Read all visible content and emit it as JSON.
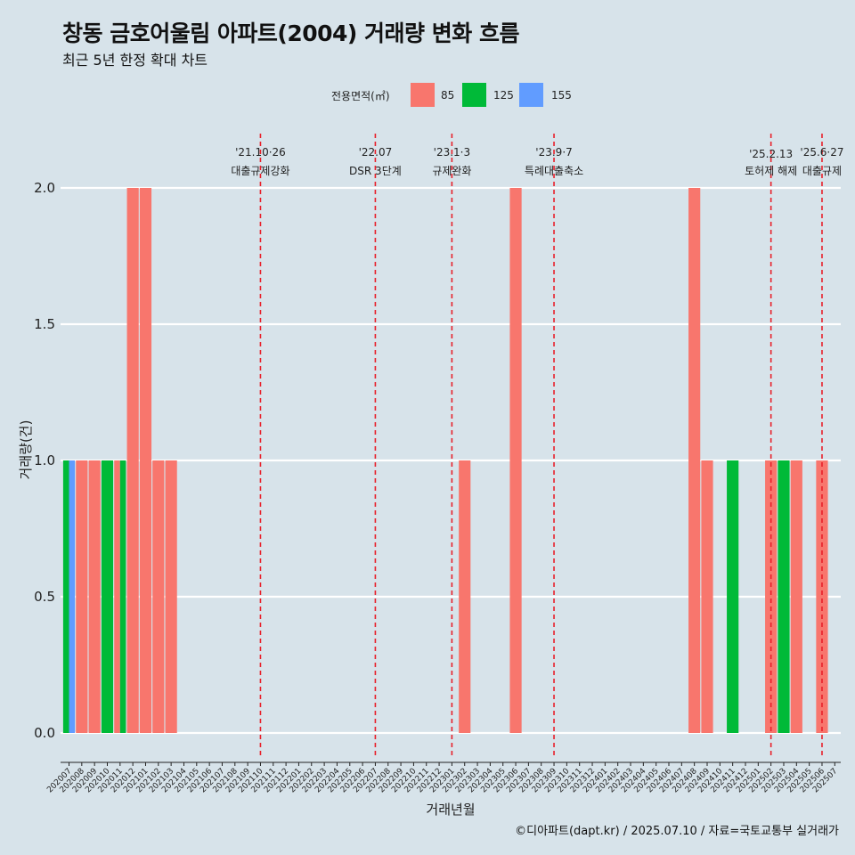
{
  "header": {
    "title": "창동 금호어울림 아파트(2004) 거래량 변화 흐름",
    "subtitle": "최근 5년 한정 확대 차트"
  },
  "caption": "©디아파트(dapt.kr) / 2025.07.10 / 자료=국토교통부 실거래가",
  "legend": {
    "title": "전용면적(㎡)",
    "items": [
      {
        "label": "85",
        "color": "#f8766d"
      },
      {
        "label": "125",
        "color": "#00ba38"
      },
      {
        "label": "155",
        "color": "#619cff"
      }
    ]
  },
  "chart_data": {
    "type": "bar",
    "xlabel": "거래년월",
    "ylabel": "거래량(건)",
    "ylim": [
      0,
      2
    ],
    "y_ticks": [
      "0.0",
      "0.5",
      "1.0",
      "1.5",
      "2.0"
    ],
    "categories": [
      "202007",
      "202008",
      "202009",
      "202010",
      "202011",
      "202012",
      "202101",
      "202102",
      "202103",
      "202104",
      "202105",
      "202106",
      "202107",
      "202108",
      "202109",
      "202110",
      "202111",
      "202112",
      "202201",
      "202202",
      "202203",
      "202204",
      "202205",
      "202206",
      "202207",
      "202208",
      "202209",
      "202210",
      "202211",
      "202212",
      "202301",
      "202302",
      "202303",
      "202304",
      "202305",
      "202306",
      "202307",
      "202308",
      "202309",
      "202310",
      "202311",
      "202312",
      "202401",
      "202402",
      "202403",
      "202404",
      "202405",
      "202406",
      "202407",
      "202408",
      "202409",
      "202410",
      "202411",
      "202412",
      "202501",
      "202502",
      "202503",
      "202504",
      "202505",
      "202506",
      "202507"
    ],
    "series": [
      {
        "name": "85",
        "color": "#f8766d",
        "values": {
          "202008": 1,
          "202009": 1,
          "202011": 1,
          "202012": 2,
          "202101": 2,
          "202102": 1,
          "202103": 1,
          "202302": 1,
          "202306": 2,
          "202408": 2,
          "202409": 1,
          "202502": 1,
          "202504": 1,
          "202506": 1
        }
      },
      {
        "name": "125",
        "color": "#00ba38",
        "values": {
          "202007": 1,
          "202010": 1,
          "202011": 1,
          "202411": 1,
          "202503": 1
        }
      },
      {
        "name": "155",
        "color": "#619cff",
        "values": {
          "202007": 1
        }
      }
    ],
    "annotations": [
      {
        "x": "202110",
        "date": "'21.10·26",
        "label": "대출규제강화"
      },
      {
        "x": "202207",
        "date": "'22.07",
        "label": "DSR 3단계"
      },
      {
        "x": "202301",
        "date": "'23.1·3",
        "label": "규제완화"
      },
      {
        "x": "202309",
        "date": "'23.9·7",
        "label": "특례대출축소"
      },
      {
        "x": "202502",
        "date": "'25.2.13",
        "label": "토허제 해제"
      },
      {
        "x": "202506",
        "date": "'25.6·27",
        "label": "대출규제"
      }
    ]
  }
}
